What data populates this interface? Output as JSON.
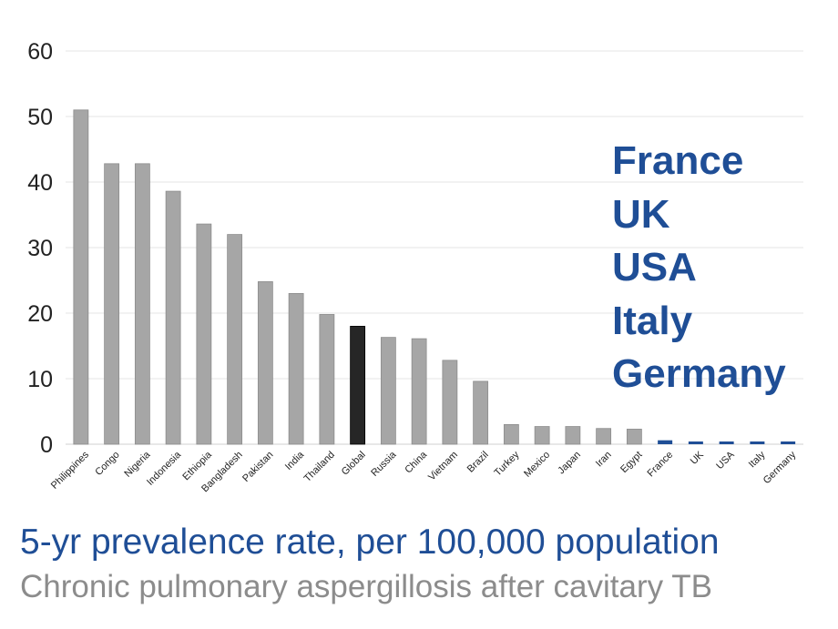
{
  "chart_data": {
    "type": "bar",
    "categories": [
      "Philippines",
      "Congo",
      "Nigeria",
      "Indonesia",
      "Ethiopia",
      "Bangladesh",
      "Pakistan",
      "India",
      "Thailand",
      "Global",
      "Russia",
      "China",
      "Vietnam",
      "Brazil",
      "Turkey",
      "Mexico",
      "Japan",
      "Iran",
      "Egypt",
      "France",
      "UK",
      "USA",
      "Italy",
      "Germany"
    ],
    "values": [
      51,
      42.8,
      42.8,
      38.6,
      33.6,
      32,
      24.8,
      23,
      19.8,
      18,
      16.3,
      16.1,
      12.8,
      9.6,
      3,
      2.7,
      2.7,
      2.4,
      2.3,
      0.6,
      0.3,
      0.3,
      0.2,
      0.2
    ],
    "highlight_category": "Global",
    "ylim": [
      0,
      60
    ],
    "yticks": [
      0,
      10,
      20,
      30,
      40,
      50,
      60
    ],
    "grid": true,
    "colors": {
      "default_bar": "#A6A6A6",
      "highlight_bar": "#262626",
      "low_income_bar": "#1F4E96"
    },
    "low_income_categories": [
      "France",
      "UK",
      "USA",
      "Italy",
      "Germany"
    ]
  },
  "callout_countries": [
    "France",
    "UK",
    "USA",
    "Italy",
    "Germany"
  ],
  "caption": {
    "main": "5-yr prevalence rate, per 100,000 population",
    "sub": "Chronic pulmonary aspergillosis after cavitary TB"
  }
}
